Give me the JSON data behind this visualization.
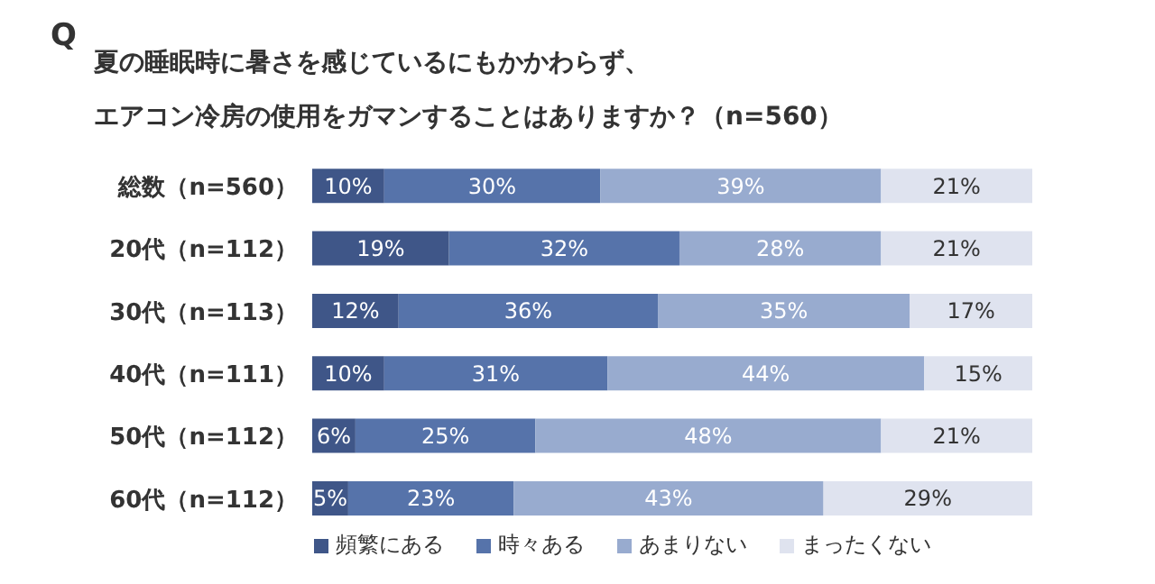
{
  "chart_data": {
    "type": "bar",
    "orientation": "horizontal",
    "stacked": true,
    "title": "夏の睡眠時に暑さを感じているにもかかわらず、エアコン冷房の使用をガマンすることはありますか？（n=560）",
    "annotations": [
      "Q"
    ],
    "categories": [
      "総数（n=560）",
      "20代（n=112）",
      "30代（n=113）",
      "40代（n=111）",
      "50代（n=112）",
      "60代（n=112）"
    ],
    "series": [
      {
        "name": "頻繁にある",
        "color": "#3f5688",
        "values": [
          10,
          19,
          12,
          10,
          6,
          5
        ],
        "value_labels": [
          "10%",
          "19%",
          "12%",
          "10%",
          "6%",
          "5%"
        ]
      },
      {
        "name": "時々ある",
        "color": "#5673aa",
        "values": [
          30,
          32,
          36,
          31,
          25,
          23
        ],
        "value_labels": [
          "30%",
          "32%",
          "36%",
          "31%",
          "25%",
          "23%"
        ]
      },
      {
        "name": "あまりない",
        "color": "#98abcf",
        "values": [
          39,
          28,
          35,
          44,
          48,
          43
        ],
        "value_labels": [
          "39%",
          "28%",
          "35%",
          "44%",
          "48%",
          "43%"
        ]
      },
      {
        "name": "まったくない",
        "color": "#dfe3ef",
        "values": [
          21,
          21,
          17,
          15,
          21,
          29
        ],
        "value_labels": [
          "21%",
          "21%",
          "17%",
          "15%",
          "21%",
          "29%"
        ]
      }
    ],
    "legend": "bottom",
    "tick_labels": "y"
  }
}
